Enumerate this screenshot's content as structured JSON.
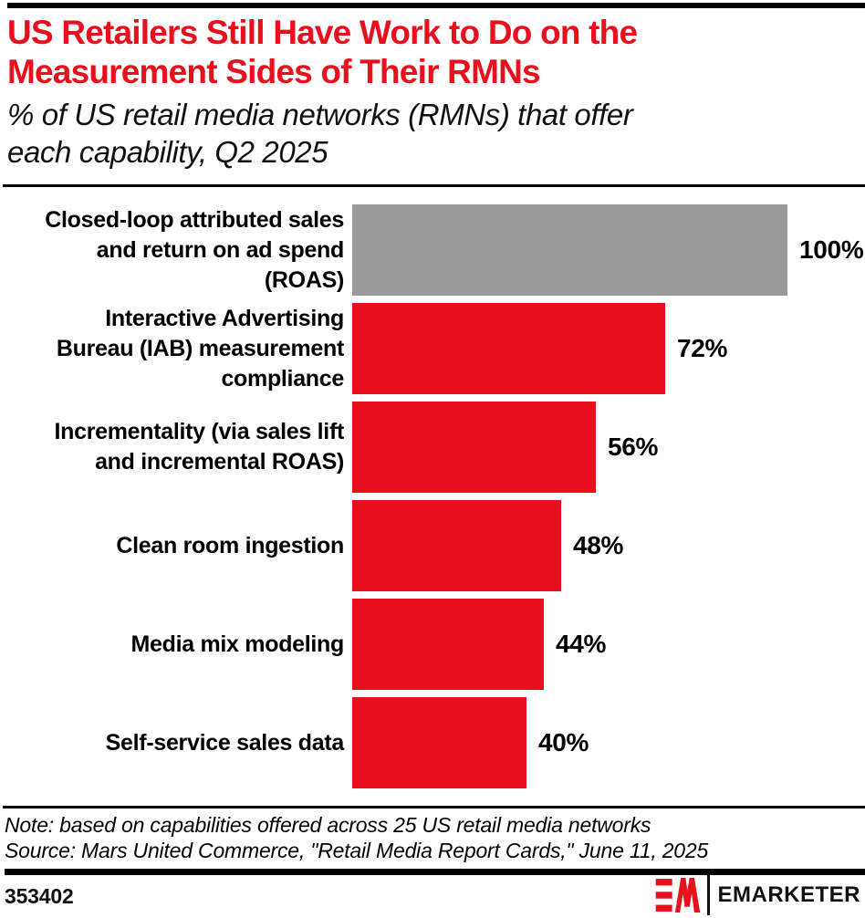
{
  "header": {
    "title_lines": [
      "US Retailers Still Have Work to Do on the",
      "Measurement Sides of Their RMNs"
    ],
    "subtitle_lines": [
      "% of US retail media networks (RMNs) that offer",
      "each capability, Q2 2025"
    ]
  },
  "chart_data": {
    "type": "bar",
    "orientation": "horizontal",
    "title": "US Retailers Still Have Work to Do on the Measurement Sides of Their RMNs",
    "subtitle": "% of US retail media networks (RMNs) that offer each capability, Q2 2025",
    "categories": [
      "Closed-loop attributed sales and return on ad spend (ROAS)",
      "Interactive Advertising Bureau (IAB) measurement compliance",
      "Incrementality (via sales lift and incremental ROAS)",
      "Clean room ingestion",
      "Media mix modeling",
      "Self-service sales data"
    ],
    "label_lines": [
      [
        "Closed-loop attributed sales",
        "and return on ad spend",
        "(ROAS)"
      ],
      [
        "Interactive Advertising",
        "Bureau (IAB) measurement",
        "compliance"
      ],
      [
        "Incrementality (via sales lift",
        "and incremental ROAS)"
      ],
      [
        "Clean room ingestion"
      ],
      [
        "Media mix modeling"
      ],
      [
        "Self-service sales data"
      ]
    ],
    "values": [
      100,
      72,
      56,
      48,
      44,
      40
    ],
    "value_labels": [
      "100%",
      "72%",
      "56%",
      "48%",
      "44%",
      "40%"
    ],
    "bar_colors": [
      "#9A9A9A",
      "#E8101C",
      "#E8101C",
      "#E8101C",
      "#E8101C",
      "#E8101C"
    ],
    "xlim": [
      0,
      100
    ],
    "unit": "%",
    "grid": false,
    "legend": false,
    "value_label_position": "right-of-bar"
  },
  "footnote": {
    "note": "Note: based on capabilities offered across 25 US retail media networks",
    "source": "Source: Mars United Commerce, \"Retail Media Report Cards,\" June 11, 2025"
  },
  "footer": {
    "chart_id": "353402",
    "brand": "EMARKETER"
  },
  "colors": {
    "accent_red": "#E8101C",
    "neutral_gray": "#9A9A9A",
    "black": "#000000"
  }
}
